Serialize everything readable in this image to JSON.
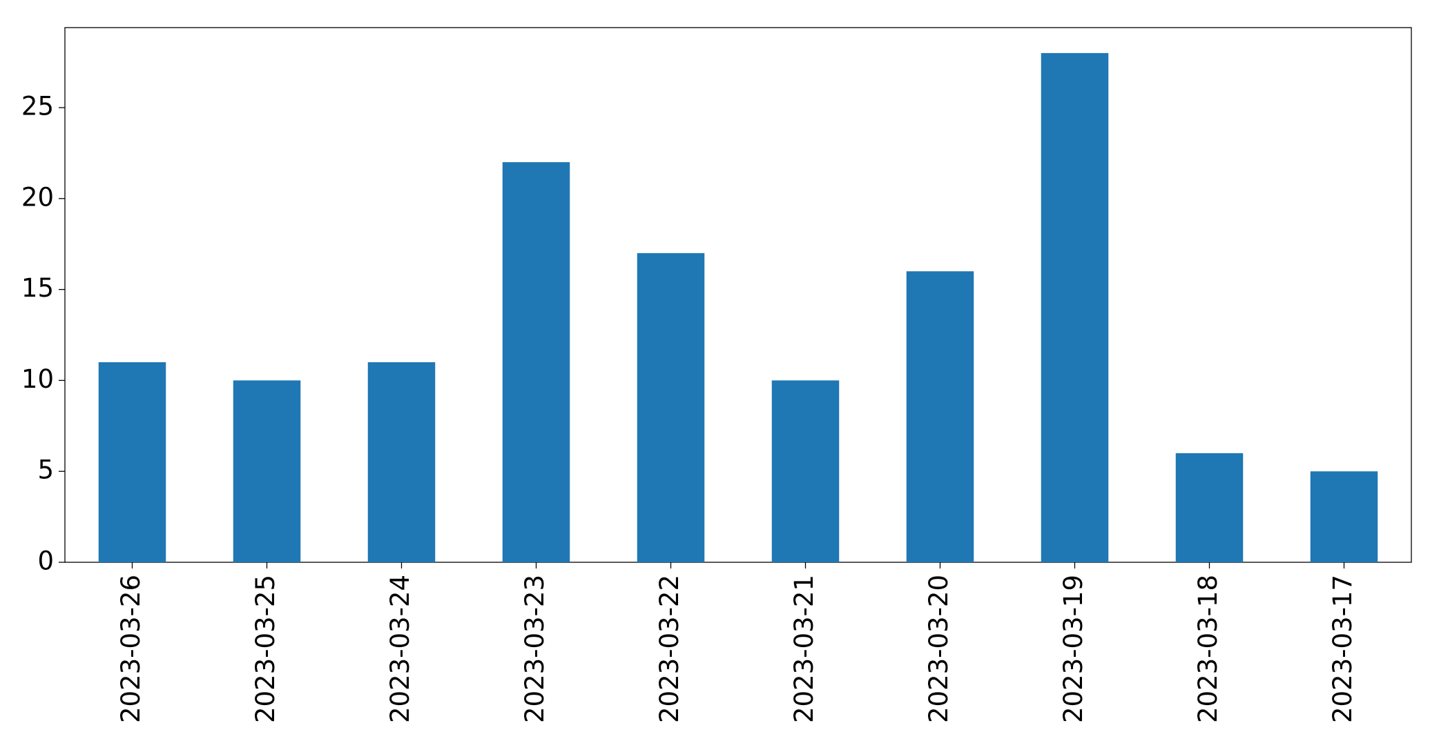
{
  "chart_data": {
    "type": "bar",
    "categories": [
      "2023-03-26",
      "2023-03-25",
      "2023-03-24",
      "2023-03-23",
      "2023-03-22",
      "2023-03-21",
      "2023-03-20",
      "2023-03-19",
      "2023-03-18",
      "2023-03-17"
    ],
    "values": [
      11,
      10,
      11,
      22,
      17,
      10,
      16,
      28,
      6,
      5
    ],
    "color": "#1f77b4",
    "ylim": [
      0,
      29.4
    ],
    "yticks": [
      0,
      5,
      10,
      15,
      20,
      25
    ],
    "grid": false
  }
}
